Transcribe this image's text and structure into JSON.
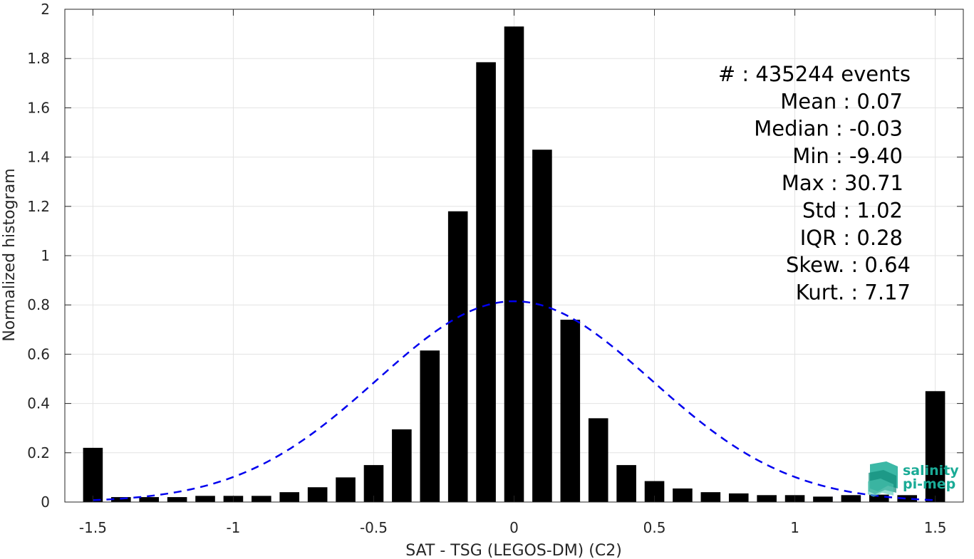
{
  "chart_data": {
    "type": "bar",
    "xlabel": "SAT - TSG (LEGOS-DM) (C2)",
    "ylabel": "Normalized histogram",
    "xlim": [
      -1.6,
      1.6
    ],
    "ylim": [
      0,
      2
    ],
    "grid": true,
    "xticks": [
      -1.5,
      -1,
      -0.5,
      0,
      0.5,
      1,
      1.5
    ],
    "xtick_labels": [
      "-1.5",
      "-1",
      "-0.5",
      "0",
      "0.5",
      "1",
      "1.5"
    ],
    "yticks": [
      0,
      0.2,
      0.4,
      0.6,
      0.8,
      1,
      1.2,
      1.4,
      1.6,
      1.8,
      2
    ],
    "ytick_labels": [
      "0",
      "0.2",
      "0.4",
      "0.6",
      "0.8",
      "1",
      "1.2",
      "1.4",
      "1.6",
      "1.8",
      "2"
    ],
    "bar_width": 0.07,
    "bar_color": "#000000",
    "x": [
      -1.5,
      -1.4,
      -1.3,
      -1.2,
      -1.1,
      -1.0,
      -0.9,
      -0.8,
      -0.7,
      -0.6,
      -0.5,
      -0.4,
      -0.3,
      -0.2,
      -0.1,
      0.0,
      0.1,
      0.2,
      0.3,
      0.4,
      0.5,
      0.6,
      0.7,
      0.8,
      0.9,
      1.0,
      1.1,
      1.2,
      1.3,
      1.4,
      1.5
    ],
    "values": [
      0.22,
      0.02,
      0.02,
      0.02,
      0.025,
      0.025,
      0.025,
      0.04,
      0.06,
      0.1,
      0.15,
      0.295,
      0.615,
      1.18,
      1.785,
      1.93,
      1.43,
      0.74,
      0.34,
      0.15,
      0.085,
      0.055,
      0.04,
      0.035,
      0.028,
      0.028,
      0.022,
      0.028,
      0.03,
      0.028,
      0.45
    ],
    "fit_curve": {
      "style": "dashed",
      "color": "#0000ee",
      "mean": 0.0,
      "std": 0.49,
      "peak": 0.815,
      "x_range": [
        -1.5,
        1.5
      ]
    },
    "annotations": [
      "#  : 435244 events",
      "Mean : 0.07",
      "Median : -0.03",
      "Min : -9.40",
      "Max : 30.71",
      "Std : 1.02",
      "IQR : 0.28",
      "Skew. : 0.64",
      "Kurt. : 7.17"
    ]
  },
  "logo": {
    "line1": "salinity",
    "line2": "pi-mep",
    "color": "#1aab96"
  }
}
